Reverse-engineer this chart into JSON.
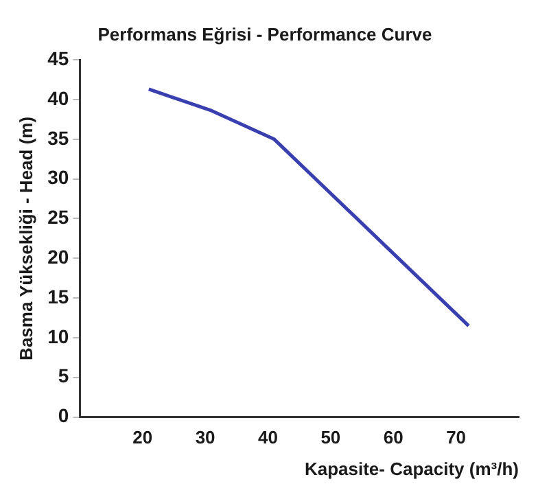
{
  "chart_data": {
    "type": "line",
    "title": "Performans Eğrisi - Performance Curve",
    "xlabel": "Kapasite- Capacity (m³/h)",
    "ylabel": "Basma Yüksekliği - Head (m)",
    "x": [
      21,
      31,
      41,
      72
    ],
    "series": [
      {
        "color": "#3a3fb0",
        "values": [
          41.3,
          38.6,
          35,
          11.5
        ]
      }
    ],
    "xlim": [
      10,
      80
    ],
    "xticks": [
      20,
      30,
      40,
      50,
      60,
      70
    ],
    "ylim": [
      0,
      45
    ],
    "yticks": [
      0,
      5,
      10,
      15,
      20,
      25,
      30,
      35,
      40,
      45
    ],
    "grid": false,
    "legend": false,
    "marker": "none",
    "line_style": "solid"
  }
}
